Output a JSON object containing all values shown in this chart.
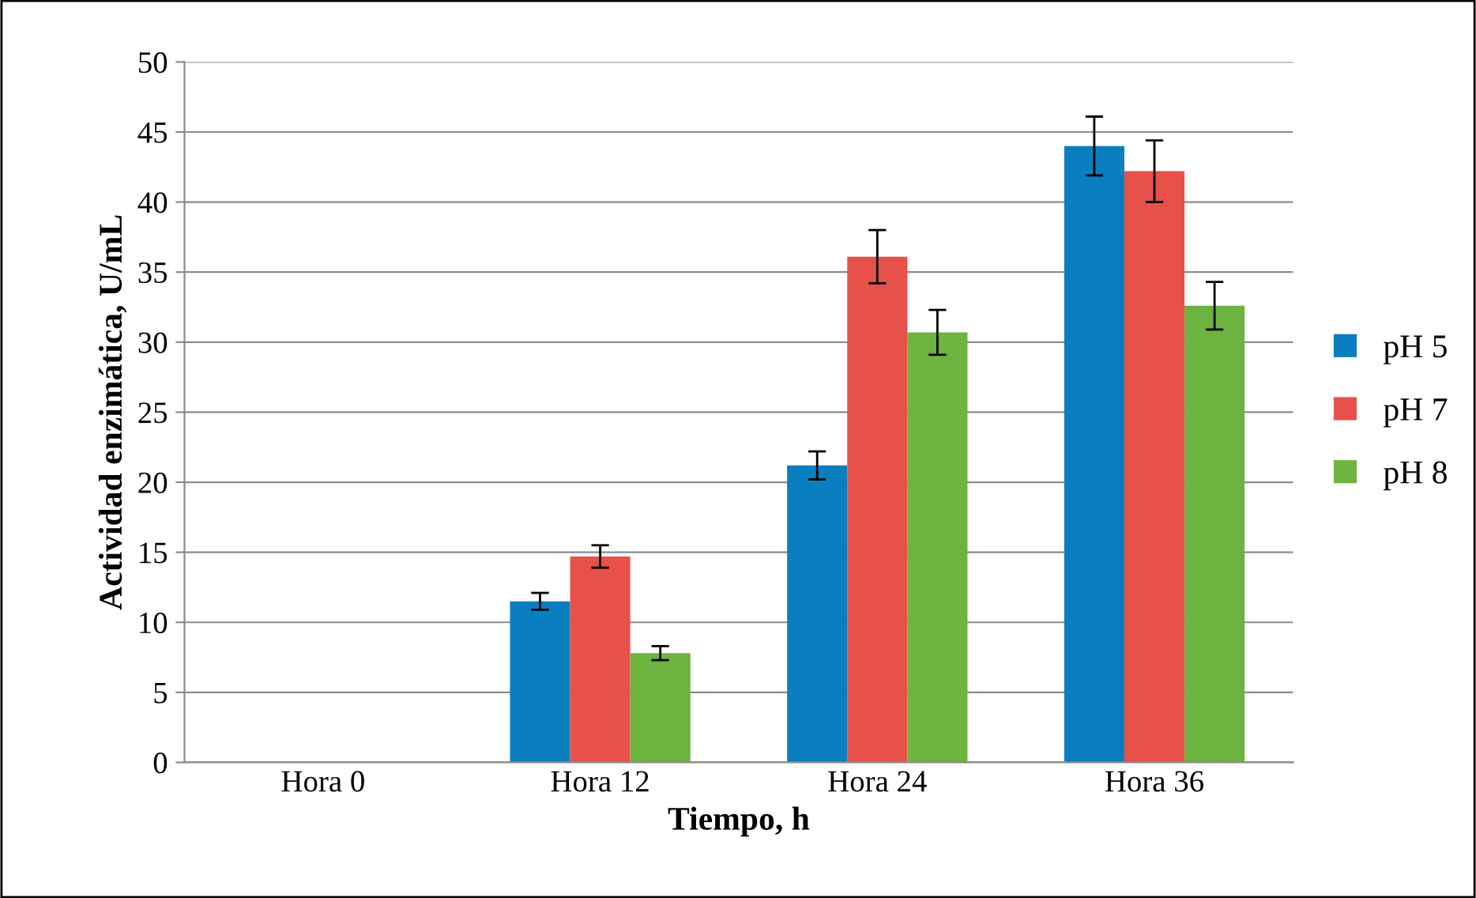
{
  "chart_data": {
    "type": "bar",
    "xlabel": "Tiempo, h",
    "ylabel": "Actividad enzimática, U/mL",
    "categories": [
      "Hora 0",
      "Hora 12",
      "Hora 24",
      "Hora 36"
    ],
    "series": [
      {
        "name": "pH 5",
        "color": "#0a7fc0",
        "values": [
          0,
          11.5,
          21.2,
          44.0
        ],
        "errors": [
          null,
          0.6,
          1.0,
          2.1
        ]
      },
      {
        "name": "pH 7",
        "color": "#e8504a",
        "values": [
          0,
          14.7,
          36.1,
          42.2
        ],
        "errors": [
          null,
          0.8,
          1.9,
          2.2
        ]
      },
      {
        "name": "pH 8",
        "color": "#6db33f",
        "values": [
          0,
          7.8,
          30.7,
          32.6
        ],
        "errors": [
          null,
          0.5,
          1.6,
          1.7
        ]
      }
    ],
    "ylim": [
      0,
      50
    ],
    "yticks": [
      0,
      5,
      10,
      15,
      20,
      25,
      30,
      35,
      40,
      45,
      50
    ],
    "grid": "y",
    "legend": "right"
  }
}
